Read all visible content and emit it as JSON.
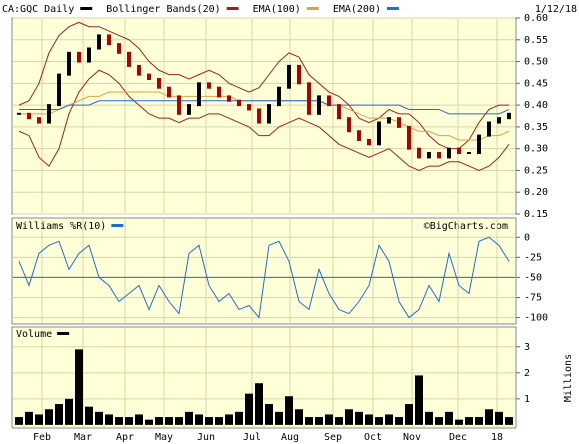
{
  "chart_data": [
    {
      "type": "price",
      "title": "CA:GQC Daily",
      "date": "1/12/18",
      "up_color": "#000000",
      "down_color": "#b00000",
      "ylim": [
        0.15,
        0.6
      ],
      "yticks": [
        0.15,
        {
          "value": 0.2,
          "label": "0.20"
        },
        0.25,
        {
          "value": 0.3,
          "label": "0.30"
        },
        0.35,
        {
          "value": 0.4,
          "label": "0.40"
        },
        0.45,
        {
          "value": 0.5,
          "label": "0.50"
        },
        0.55,
        {
          "value": 0.6,
          "label": "0.60"
        }
      ],
      "grid": true,
      "series": [
        {
          "name": "CA:GQC Daily",
          "color": "#000000",
          "values": [
            0.38,
            0.37,
            0.36,
            0.4,
            0.47,
            0.52,
            0.5,
            0.53,
            0.56,
            0.54,
            0.52,
            0.49,
            0.47,
            0.46,
            0.44,
            0.42,
            0.38,
            0.4,
            0.45,
            0.44,
            0.42,
            0.41,
            0.4,
            0.39,
            0.36,
            0.4,
            0.44,
            0.49,
            0.45,
            0.38,
            0.42,
            0.4,
            0.37,
            0.34,
            0.32,
            0.31,
            0.36,
            0.37,
            0.35,
            0.3,
            0.28,
            0.29,
            0.28,
            0.3,
            0.29,
            0.29,
            0.33,
            0.36,
            0.37,
            0.38
          ]
        },
        {
          "name": "Bollinger Bands(20)",
          "color": "#a02020",
          "upper": [
            0.4,
            0.41,
            0.45,
            0.52,
            0.56,
            0.58,
            0.59,
            0.58,
            0.58,
            0.57,
            0.56,
            0.55,
            0.53,
            0.5,
            0.48,
            0.47,
            0.47,
            0.46,
            0.47,
            0.48,
            0.47,
            0.45,
            0.44,
            0.43,
            0.44,
            0.47,
            0.5,
            0.52,
            0.51,
            0.47,
            0.45,
            0.43,
            0.42,
            0.4,
            0.37,
            0.36,
            0.37,
            0.39,
            0.38,
            0.38,
            0.36,
            0.33,
            0.31,
            0.3,
            0.3,
            0.32,
            0.36,
            0.39,
            0.4,
            0.4
          ],
          "lower": [
            0.34,
            0.33,
            0.28,
            0.26,
            0.3,
            0.38,
            0.43,
            0.46,
            0.48,
            0.47,
            0.45,
            0.42,
            0.4,
            0.38,
            0.37,
            0.37,
            0.36,
            0.37,
            0.37,
            0.38,
            0.38,
            0.37,
            0.36,
            0.35,
            0.33,
            0.33,
            0.35,
            0.36,
            0.37,
            0.36,
            0.35,
            0.33,
            0.31,
            0.3,
            0.29,
            0.28,
            0.29,
            0.3,
            0.28,
            0.26,
            0.25,
            0.26,
            0.26,
            0.27,
            0.27,
            0.26,
            0.25,
            0.26,
            0.28,
            0.31
          ]
        },
        {
          "name": "EMA(100)",
          "color": "#d9a441",
          "values": [
            0.38,
            0.38,
            0.38,
            0.38,
            0.39,
            0.4,
            0.41,
            0.42,
            0.42,
            0.43,
            0.43,
            0.43,
            0.43,
            0.43,
            0.43,
            0.42,
            0.42,
            0.42,
            0.42,
            0.42,
            0.42,
            0.42,
            0.41,
            0.41,
            0.41,
            0.41,
            0.41,
            0.41,
            0.41,
            0.41,
            0.41,
            0.4,
            0.4,
            0.39,
            0.38,
            0.37,
            0.37,
            0.37,
            0.36,
            0.35,
            0.34,
            0.34,
            0.33,
            0.33,
            0.32,
            0.32,
            0.32,
            0.33,
            0.33,
            0.34
          ]
        },
        {
          "name": "EMA(200)",
          "color": "#1f6fd0",
          "values": [
            0.39,
            0.39,
            0.39,
            0.39,
            0.39,
            0.4,
            0.4,
            0.4,
            0.41,
            0.41,
            0.41,
            0.41,
            0.41,
            0.41,
            0.41,
            0.41,
            0.41,
            0.41,
            0.41,
            0.41,
            0.41,
            0.41,
            0.41,
            0.41,
            0.41,
            0.41,
            0.41,
            0.41,
            0.41,
            0.41,
            0.41,
            0.4,
            0.4,
            0.4,
            0.4,
            0.4,
            0.4,
            0.4,
            0.4,
            0.39,
            0.39,
            0.39,
            0.39,
            0.38,
            0.38,
            0.38,
            0.38,
            0.38,
            0.38,
            0.39
          ]
        }
      ]
    },
    {
      "type": "line",
      "credit": "©BigCharts.com",
      "ylim": [
        -108,
        24
      ],
      "yticks": [
        0,
        -25,
        -50,
        -75,
        -100
      ],
      "reference_line": -50,
      "grid": true,
      "series": [
        {
          "name": "Williams %R(10)",
          "color": "#1f6fd0",
          "values": [
            -30,
            -60,
            -20,
            -10,
            -5,
            -40,
            -20,
            -10,
            -50,
            -60,
            -80,
            -70,
            -60,
            -90,
            -60,
            -80,
            -95,
            -20,
            -10,
            -60,
            -80,
            -70,
            -90,
            -85,
            -100,
            -10,
            -5,
            -30,
            -80,
            -90,
            -40,
            -70,
            -90,
            -95,
            -80,
            -60,
            -10,
            -30,
            -80,
            -100,
            -90,
            -60,
            -80,
            -20,
            -60,
            -70,
            -5,
            0,
            -10,
            -30
          ]
        }
      ]
    },
    {
      "type": "bar",
      "y_label": "Millions",
      "ylim": [
        -0.12,
        3.76
      ],
      "yticks": [
        1,
        2,
        3
      ],
      "grid": true,
      "series": [
        {
          "name": "Volume",
          "color": "#000000",
          "values": [
            0.3,
            0.5,
            0.4,
            0.6,
            0.8,
            1.0,
            2.9,
            0.7,
            0.5,
            0.4,
            0.3,
            0.3,
            0.4,
            0.2,
            0.3,
            0.3,
            0.3,
            0.5,
            0.4,
            0.3,
            0.3,
            0.4,
            0.5,
            1.2,
            1.6,
            0.8,
            0.5,
            1.1,
            0.6,
            0.3,
            0.3,
            0.4,
            0.3,
            0.6,
            0.5,
            0.4,
            0.3,
            0.4,
            0.3,
            0.8,
            1.9,
            0.5,
            0.3,
            0.5,
            0.2,
            0.3,
            0.3,
            0.6,
            0.5,
            0.3
          ]
        }
      ],
      "x": [
        0,
        1,
        2,
        3,
        4,
        5,
        6,
        7,
        8,
        9,
        10,
        11,
        12,
        13,
        14,
        15,
        16,
        17,
        18,
        19,
        20,
        21,
        22,
        23,
        24,
        25,
        26,
        27,
        28,
        29,
        30,
        31,
        32,
        33,
        34,
        35,
        36,
        37,
        38,
        39,
        40,
        41,
        42,
        43,
        44,
        45,
        46,
        47,
        48,
        49
      ],
      "xlim": [
        -0.5,
        49.5
      ],
      "xticks": [
        {
          "value": 2.3,
          "label": "Feb"
        },
        {
          "value": 6.4,
          "label": "Mar"
        },
        {
          "value": 10.6,
          "label": "Apr"
        },
        {
          "value": 14.5,
          "label": "May"
        },
        {
          "value": 18.7,
          "label": "Jun"
        },
        {
          "value": 23.3,
          "label": "Jul"
        },
        {
          "value": 27.1,
          "label": "Aug"
        },
        {
          "value": 31.4,
          "label": "Sep"
        },
        {
          "value": 35.4,
          "label": "Oct"
        },
        {
          "value": 39.3,
          "label": "Nov"
        },
        {
          "value": 43.9,
          "label": "Dec"
        },
        {
          "value": 47.8,
          "label": "18"
        }
      ]
    }
  ]
}
